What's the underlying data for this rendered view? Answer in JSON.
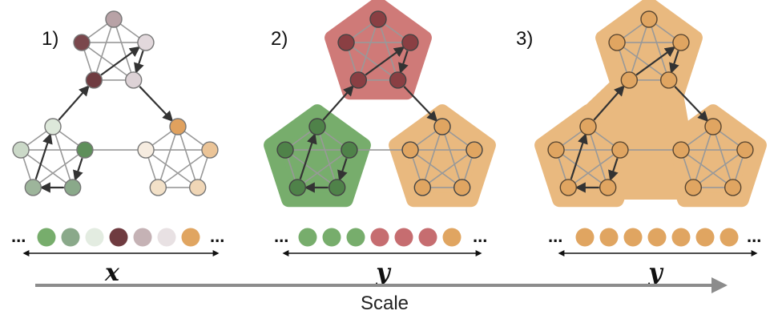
{
  "scale_label": "Scale",
  "colors": {
    "green": "#5e8f5a",
    "green_mid": "#8aa98a",
    "green_light": "#e3ece1",
    "red_dark": "#6f3b40",
    "red_mid": "#c5b2b5",
    "red_light": "#e8e1e3",
    "orange": "#e0a15e",
    "green_fill": "#77ad6c",
    "red_fill": "#cf7a78",
    "orange_fill": "#e9b97f",
    "edge": "#999999",
    "arrow": "#333333"
  },
  "panels": [
    {
      "label": "1)",
      "variable": "x",
      "strip": [
        "green",
        "green_mid",
        "green_light",
        "red_dark",
        "red_mid",
        "red_light",
        "orange"
      ],
      "ellipsis": "..."
    },
    {
      "label": "2)",
      "variable": "y",
      "strip": [
        "green",
        "green",
        "green",
        "red",
        "red",
        "red",
        "orange"
      ],
      "ellipsis": "..."
    },
    {
      "label": "3)",
      "variable": "y",
      "strip": [
        "orange",
        "orange",
        "orange",
        "orange",
        "orange",
        "orange",
        "orange"
      ],
      "ellipsis": "..."
    }
  ]
}
